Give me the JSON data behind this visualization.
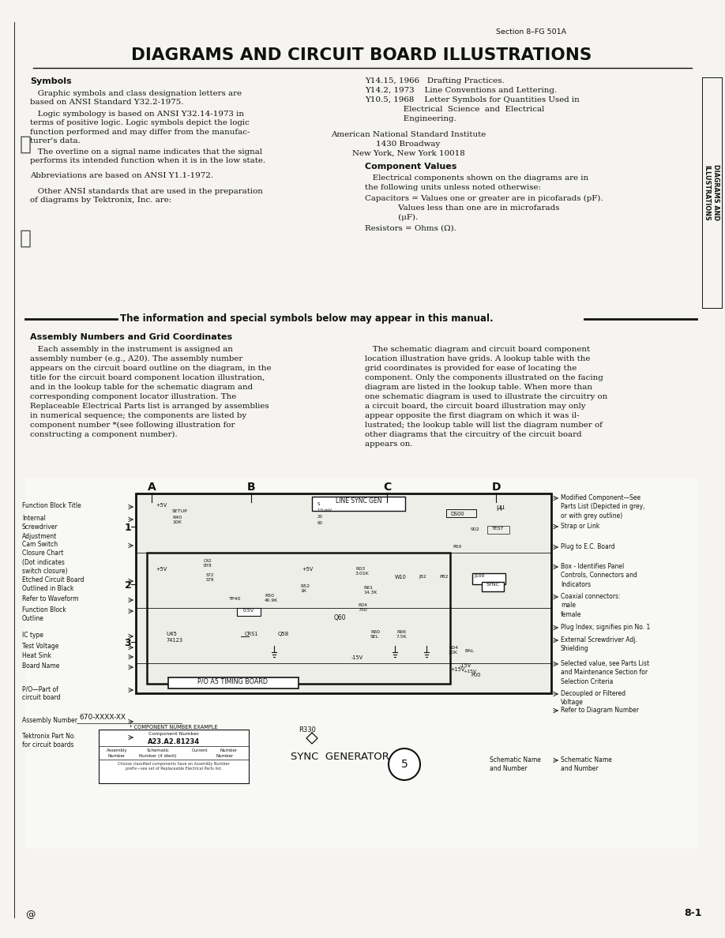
{
  "page_bg": "#f5f4f0",
  "text_color": "#1a1a1a",
  "title": "DIAGRAMS AND CIRCUIT BOARD ILLUSTRATIONS",
  "section_header": "Section 8–FG 501A",
  "page_number": "8-1",
  "at_symbol": "@",
  "sidebar_text": "DIAGRAMS AND\nILLUSTRATIONS",
  "symbols_heading": "Symbols",
  "sym_body1": "   Graphic symbols and class designation letters are\nbased on ANSI Standard Y32.2-1975.",
  "sym_body2": "   Logic symbology is based on ANSI Y32.14-1973 in\nterms of positive logic. Logic symbols depict the logic\nfunction performed and may differ from the manufac-\nturer's data.",
  "sym_body3": "   The overline on a signal name indicates that the signal\nperforms its intended function when it is in the low state.",
  "sym_body4": "Abbreviations are based on ANSI Y1.1-1972.",
  "sym_body5": "   Other ANSI standards that are used in the preparation\nof diagrams by Tektronix, Inc. are:",
  "right_y14_15": "Y14.15, 1966   Drafting Practices.",
  "right_y14_2": "Y14.2, 1973    Line Conventions and Lettering.",
  "right_y10_5a": "Y10.5, 1968    Letter Symbols for Quantities Used in",
  "right_y10_5b": "               Electrical  Science  and  Electrical",
  "right_y10_5c": "               Engineering.",
  "right_addr1": "American National Standard Institute",
  "right_addr2": "1430 Broadway",
  "right_addr3": "New York, New York 10018",
  "comp_values_heading": "Component Values",
  "comp_values_body1": "   Electrical components shown on the diagrams are in",
  "comp_values_body2": "the following units unless noted otherwise:",
  "cap_line1": "Capacitors = Values one or greater are in picofarads (pF).",
  "cap_line2": "             Values less than one are in microfarads",
  "cap_line3": "             (μF).",
  "res_line": "Resistors = Ohms (Ω).",
  "info_banner": "The information and special symbols below may appear in this manual.",
  "assembly_heading": "Assembly Numbers and Grid Coordinates",
  "asm_left1": "   Each assembly in the instrument is assigned an",
  "asm_left2": "assembly number (e.g., A20). The assembly number",
  "asm_left3": "appears on the circuit board outline on the diagram, in the",
  "asm_left4": "title for the circuit board component location illustration,",
  "asm_left5": "and in the lookup table for the schematic diagram and",
  "asm_left6": "corresponding component locator illustration. The",
  "asm_left7": "Replaceable Electrical Parts list is arranged by assemblies",
  "asm_left8": "in numerical sequence; the components are listed by",
  "asm_left9": "component number *(see following illustration for",
  "asm_left10": "constructing a component number).",
  "asm_right1": "   The schematic diagram and circuit board component",
  "asm_right2": "location illustration have grids. A lookup table with the",
  "asm_right3": "grid coordinates is provided for ease of locating the",
  "asm_right4": "component. Only the components illustrated on the facing",
  "asm_right5": "diagram are listed in the lookup table. When more than",
  "asm_right6": "one schematic diagram is used to illustrate the circuitry on",
  "asm_right7": "a circuit board, the circuit board illustration may only",
  "asm_right8": "appear opposite the first diagram on which it was il-",
  "asm_right9": "lustrated; the lookup table will list the diagram number of",
  "asm_right10": "other diagrams that the circuitry of the circuit board",
  "asm_right11": "appears on.",
  "lbl_left": [
    "Function Block Title",
    "Internal\nScrewdriver\nAdjustment",
    "Cam Switch\nClosure Chart\n(Dot indicates\nswitch closure)",
    "Etched Circuit Board\nOutlined in Black",
    "Refer to Waveform",
    "Function Block\nOutline",
    "IC type",
    "Test Voltage",
    "Heat Sink",
    "Board Name",
    "P/O—Part of\ncircuit board",
    "Assembly Number",
    "Tektronix Part No.\nfor circuit boards"
  ],
  "lbl_left_y": [
    636,
    652,
    685,
    730,
    754,
    768,
    800,
    814,
    826,
    839,
    868,
    908,
    928
  ],
  "lbl_right": [
    "Modified Component—See\nParts List (Depicted in grey,\nor with grey outline)",
    "Strap or Link",
    "Plug to E.C. Board",
    "Box - Identifies Panel\nControls, Connectors and\nIndicators",
    "Coaxial connectors:\nmale\nfemale",
    "Plug Index; signifies pin No. 1",
    "External Screwdriver Adj.\nShielding",
    "Selected value, see Parts List\nand Maintenance Section for\nSelection Criteria",
    "Decoupled or Filtered\nVoltage",
    "Refer to Diagram Number",
    "Schematic Name\nand Number"
  ],
  "lbl_right_y": [
    626,
    662,
    688,
    713,
    751,
    790,
    806,
    836,
    874,
    895,
    958
  ]
}
